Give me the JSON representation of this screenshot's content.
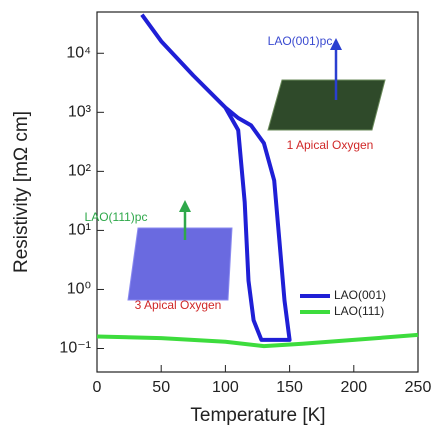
{
  "chart_data": {
    "type": "line",
    "xlabel": "Temperature [K]",
    "ylabel": "Resistivity [mΩ cm]",
    "xlim": [
      0,
      250
    ],
    "xticks": [
      0,
      50,
      100,
      150,
      200,
      250
    ],
    "ylim": [
      0.04,
      50000
    ],
    "log_y": true,
    "yticks": [
      {
        "value": 0.1,
        "label": "10⁻¹"
      },
      {
        "value": 1,
        "label": "10⁰"
      },
      {
        "value": 10,
        "label": "10¹"
      },
      {
        "value": 100,
        "label": "10²"
      },
      {
        "value": 1000,
        "label": "10³"
      },
      {
        "value": 10000,
        "label": "10⁴"
      }
    ],
    "legend": "lower right",
    "series": [
      {
        "name": "LAO(001)",
        "color": "#1f1fd6",
        "x": [
          35,
          50,
          75,
          100,
          110,
          115,
          118,
          122,
          128,
          150,
          146,
          142,
          138,
          130,
          120,
          110,
          100
        ],
        "values": [
          45000,
          16000,
          4200,
          1200,
          500,
          30,
          1.4,
          0.3,
          0.14,
          0.14,
          0.65,
          7,
          70,
          300,
          600,
          800,
          1200
        ]
      },
      {
        "name": "LAO(111)",
        "color": "#3ddc3d",
        "x": [
          0,
          50,
          100,
          130,
          160,
          200,
          250
        ],
        "values": [
          0.16,
          0.15,
          0.13,
          0.11,
          0.12,
          0.14,
          0.17
        ]
      }
    ],
    "annotations": [
      "LAO(001)pc",
      "1 Apical Oxygen",
      "LAO(111)pc",
      "3 Apical Oxygen"
    ]
  }
}
